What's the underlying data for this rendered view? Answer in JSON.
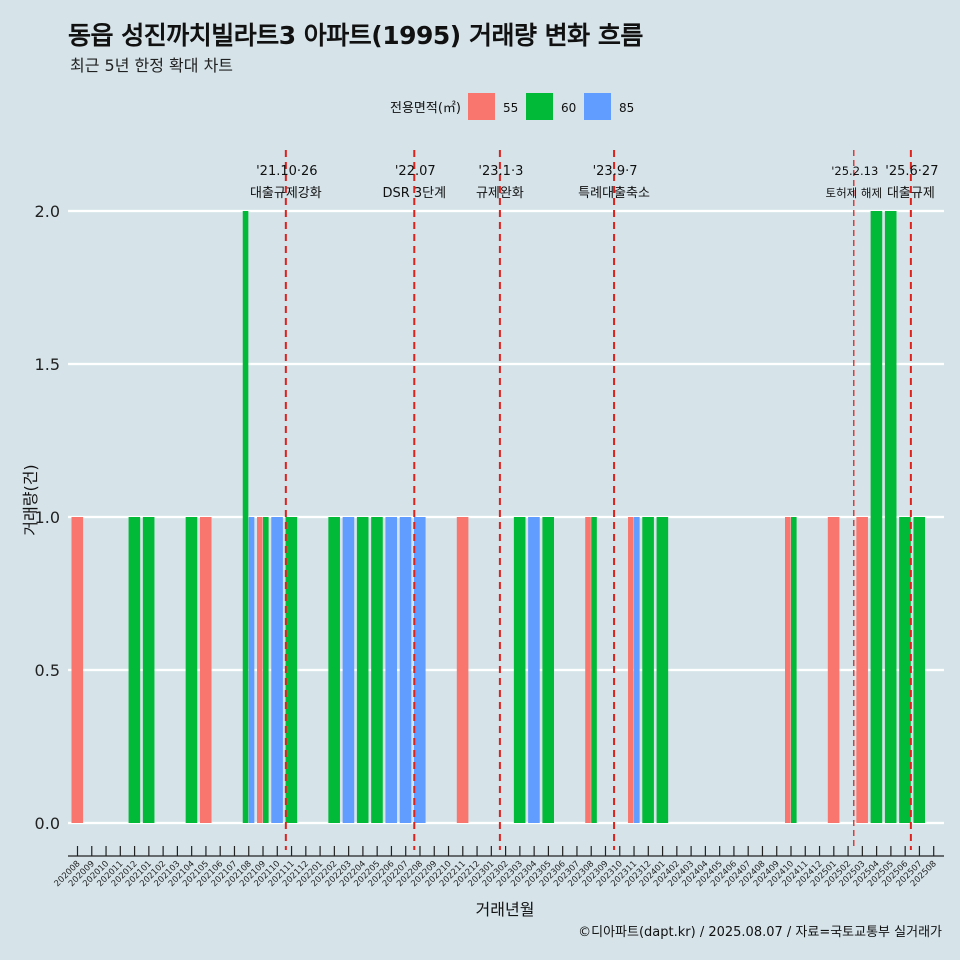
{
  "title": "동읍 성진까치빌라트3 아파트(1995) 거래량 변화 흐름",
  "subtitle": "최근 5년 한정 확대 차트",
  "caption": "©디아파트(dapt.kr) / 2025.08.07 / 자료=국토교통부 실거래가",
  "colors": {
    "55": "#f8766d",
    "60": "#00ba38",
    "85": "#619cff",
    "event_line": "#e0201b",
    "background": "#d6e4ea",
    "grid": "#ffffff"
  },
  "chart_data": {
    "type": "bar",
    "stacked": false,
    "xlabel": "거래년월",
    "ylabel": "거래량(건)",
    "ylim": [
      0,
      2
    ],
    "yticks": [
      "0.0",
      "0.5",
      "1.0",
      "1.5",
      "2.0"
    ],
    "legend": {
      "title": "전용면적(㎡)",
      "position": "top",
      "entries": [
        "55",
        "60",
        "85"
      ]
    },
    "categories": [
      "202008",
      "202009",
      "202010",
      "202011",
      "202012",
      "202101",
      "202102",
      "202103",
      "202104",
      "202105",
      "202106",
      "202107",
      "202108",
      "202109",
      "202110",
      "202111",
      "202112",
      "202201",
      "202202",
      "202203",
      "202204",
      "202205",
      "202206",
      "202207",
      "202208",
      "202209",
      "202210",
      "202211",
      "202212",
      "202301",
      "202302",
      "202303",
      "202304",
      "202305",
      "202306",
      "202307",
      "202308",
      "202309",
      "202310",
      "202311",
      "202312",
      "202401",
      "202402",
      "202403",
      "202404",
      "202405",
      "202406",
      "202407",
      "202408",
      "202409",
      "202410",
      "202411",
      "202412",
      "202501",
      "202502",
      "202503",
      "202504",
      "202505",
      "202506",
      "202507",
      "202508"
    ],
    "bars": [
      {
        "month": "202008",
        "size": "55",
        "value": 1
      },
      {
        "month": "202012",
        "size": "60",
        "value": 1
      },
      {
        "month": "202101",
        "size": "60",
        "value": 1
      },
      {
        "month": "202104",
        "size": "60",
        "value": 1
      },
      {
        "month": "202105",
        "size": "55",
        "value": 1
      },
      {
        "month": "202108",
        "size": "60",
        "value": 2
      },
      {
        "month": "202108",
        "size": "85",
        "value": 1
      },
      {
        "month": "202109",
        "size": "55",
        "value": 1
      },
      {
        "month": "202109",
        "size": "60",
        "value": 1
      },
      {
        "month": "202110",
        "size": "85",
        "value": 1
      },
      {
        "month": "202111",
        "size": "60",
        "value": 1
      },
      {
        "month": "202202",
        "size": "60",
        "value": 1
      },
      {
        "month": "202203",
        "size": "85",
        "value": 1
      },
      {
        "month": "202204",
        "size": "60",
        "value": 1
      },
      {
        "month": "202205",
        "size": "60",
        "value": 1
      },
      {
        "month": "202206",
        "size": "85",
        "value": 1
      },
      {
        "month": "202207",
        "size": "85",
        "value": 1
      },
      {
        "month": "202208",
        "size": "85",
        "value": 1
      },
      {
        "month": "202211",
        "size": "55",
        "value": 1
      },
      {
        "month": "202303",
        "size": "60",
        "value": 1
      },
      {
        "month": "202304",
        "size": "85",
        "value": 1
      },
      {
        "month": "202305",
        "size": "60",
        "value": 1
      },
      {
        "month": "202308",
        "size": "55",
        "value": 1
      },
      {
        "month": "202308",
        "size": "60",
        "value": 1
      },
      {
        "month": "202311",
        "size": "55",
        "value": 1
      },
      {
        "month": "202311",
        "size": "85",
        "value": 1
      },
      {
        "month": "202312",
        "size": "60",
        "value": 1
      },
      {
        "month": "202401",
        "size": "60",
        "value": 1
      },
      {
        "month": "202410",
        "size": "55",
        "value": 1
      },
      {
        "month": "202410",
        "size": "60",
        "value": 1
      },
      {
        "month": "202501",
        "size": "55",
        "value": 1
      },
      {
        "month": "202503",
        "size": "55",
        "value": 1
      },
      {
        "month": "202504",
        "size": "60",
        "value": 2
      },
      {
        "month": "202505",
        "size": "60",
        "value": 2
      },
      {
        "month": "202506",
        "size": "60",
        "value": 1
      },
      {
        "month": "202507",
        "size": "60",
        "value": 1
      }
    ],
    "events": [
      {
        "x": 14.6,
        "date": "'21.10·26",
        "label": "대출규제강화"
      },
      {
        "x": 23.6,
        "date": "'22.07",
        "label": "DSR 3단계"
      },
      {
        "x": 29.6,
        "date": "'23.1·3",
        "label": "규제완화"
      },
      {
        "x": 37.6,
        "date": "'23.9·7",
        "label": "특례대출축소"
      },
      {
        "x": 54.4,
        "date": "'25.2.13",
        "label": "토허제 해제",
        "dashed": true
      },
      {
        "x": 58.4,
        "date": "'25.6·27",
        "label": "대출규제"
      }
    ]
  }
}
